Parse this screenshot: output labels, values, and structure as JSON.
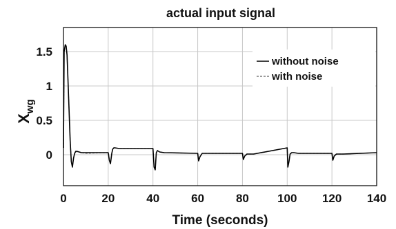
{
  "chart_data": {
    "type": "line",
    "title": "actual input signal",
    "xlabel": "Time (seconds)",
    "ylabel": "X",
    "ylabel_subscript": "wg",
    "xlim": [
      0,
      140
    ],
    "ylim": [
      -0.45,
      1.85
    ],
    "xticks": [
      "0",
      "20",
      "40",
      "60",
      "80",
      "100",
      "120",
      "140"
    ],
    "yticks": [
      "0",
      "0.5",
      "1",
      "1.5"
    ],
    "grid": true,
    "legend_position": "top-right",
    "series": [
      {
        "name": "without noise",
        "color": "#000000",
        "style": "solid",
        "x": [
          0,
          0.3,
          0.8,
          1.2,
          1.6,
          2.0,
          2.5,
          3.0,
          3.5,
          4.0,
          4.5,
          5.0,
          5.5,
          6.0,
          7.0,
          8.0,
          10.0,
          20.0,
          20.5,
          21.0,
          21.6,
          22.0,
          22.5,
          23.0,
          25.0,
          40.0,
          40.5,
          41.0,
          41.5,
          42.0,
          43.0,
          45.0,
          60.0,
          60.4,
          61.0,
          62.0,
          65.0,
          80.0,
          80.4,
          81.0,
          82.0,
          85.0,
          100.0,
          100.3,
          100.8,
          101.3,
          102.0,
          103.0,
          105.0,
          120.0,
          120.4,
          121.0,
          122.0,
          125.0,
          140.0
        ],
        "y": [
          0.1,
          1.5,
          1.6,
          1.58,
          1.45,
          1.1,
          0.65,
          0.2,
          -0.1,
          -0.18,
          -0.05,
          0.02,
          0.05,
          0.05,
          0.04,
          0.03,
          0.03,
          0.03,
          -0.08,
          -0.13,
          0.02,
          0.08,
          0.1,
          0.1,
          0.09,
          0.09,
          -0.18,
          -0.22,
          0.03,
          0.06,
          0.04,
          0.03,
          0.02,
          -0.09,
          -0.03,
          0.02,
          0.02,
          0.02,
          -0.07,
          -0.02,
          0.01,
          0.01,
          0.1,
          -0.18,
          -0.1,
          0.01,
          0.03,
          0.03,
          0.02,
          0.02,
          -0.08,
          -0.02,
          0.01,
          0.01,
          0.03
        ]
      },
      {
        "name": "with noise",
        "color": "#7a7a7a",
        "style": "dashed",
        "x": [
          0,
          0.3,
          0.8,
          1.2,
          1.6,
          2.0,
          2.5,
          3.0,
          3.5,
          4.0,
          4.5,
          5.0,
          5.5,
          6.0,
          7.0,
          8.0,
          10.0,
          20.0,
          20.5,
          21.0,
          21.6,
          22.0,
          22.5,
          23.0,
          25.0,
          40.0,
          40.5,
          41.0,
          41.5,
          42.0,
          43.0,
          45.0,
          60.0,
          60.4,
          61.0,
          62.0,
          65.0,
          80.0,
          80.4,
          81.0,
          82.0,
          85.0,
          100.0,
          100.3,
          100.8,
          101.3,
          102.0,
          103.0,
          105.0,
          120.0,
          120.4,
          121.0,
          122.0,
          125.0,
          140.0
        ],
        "y": [
          0.1,
          1.49,
          1.6,
          1.57,
          1.44,
          1.1,
          0.66,
          0.21,
          -0.09,
          -0.17,
          -0.05,
          0.02,
          0.05,
          0.04,
          0.04,
          0.03,
          0.02,
          0.03,
          -0.07,
          -0.12,
          0.02,
          0.08,
          0.1,
          0.1,
          0.09,
          0.09,
          -0.17,
          -0.21,
          0.03,
          0.06,
          0.04,
          0.03,
          0.02,
          -0.08,
          -0.03,
          0.02,
          0.02,
          0.02,
          -0.06,
          -0.02,
          0.01,
          0.01,
          0.1,
          -0.17,
          -0.09,
          0.01,
          0.03,
          0.03,
          0.02,
          0.02,
          -0.07,
          -0.02,
          0.01,
          0.01,
          0.03
        ]
      }
    ]
  }
}
